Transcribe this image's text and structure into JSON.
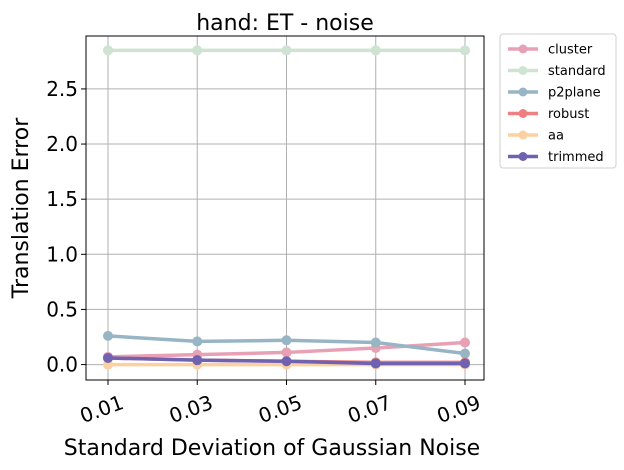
{
  "chart_data": {
    "type": "line",
    "title": "hand: ET - noise",
    "xlabel": "Standard Deviation of Gaussian Noise",
    "ylabel": "Translation Error",
    "x": [
      "0.01",
      "0.03",
      "0.05",
      "0.07",
      "0.09"
    ],
    "ylim": [
      -0.14,
      2.98
    ],
    "yticks": [
      "0.0",
      "0.5",
      "1.0",
      "1.5",
      "2.0",
      "2.5"
    ],
    "ytick_values": [
      0,
      0.5,
      1.0,
      1.5,
      2.0,
      2.5
    ],
    "grid": true,
    "legend_position": "outside-top-right",
    "series": [
      {
        "name": "cluster",
        "color": "#e8a0b4",
        "values": [
          0.07,
          0.09,
          0.11,
          0.15,
          0.2
        ]
      },
      {
        "name": "standard",
        "color": "#cfe3d2",
        "values": [
          2.85,
          2.85,
          2.85,
          2.85,
          2.85
        ]
      },
      {
        "name": "p2plane",
        "color": "#97b5c4",
        "values": [
          0.26,
          0.21,
          0.22,
          0.2,
          0.1
        ]
      },
      {
        "name": "robust",
        "color": "#f08080",
        "values": [
          0.06,
          0.04,
          0.03,
          0.02,
          0.02
        ]
      },
      {
        "name": "aa",
        "color": "#fdd0a2",
        "values": [
          0.0,
          0.0,
          0.0,
          0.0,
          0.0
        ]
      },
      {
        "name": "trimmed",
        "color": "#6f62b0",
        "values": [
          0.06,
          0.04,
          0.03,
          0.01,
          0.01
        ]
      }
    ]
  }
}
